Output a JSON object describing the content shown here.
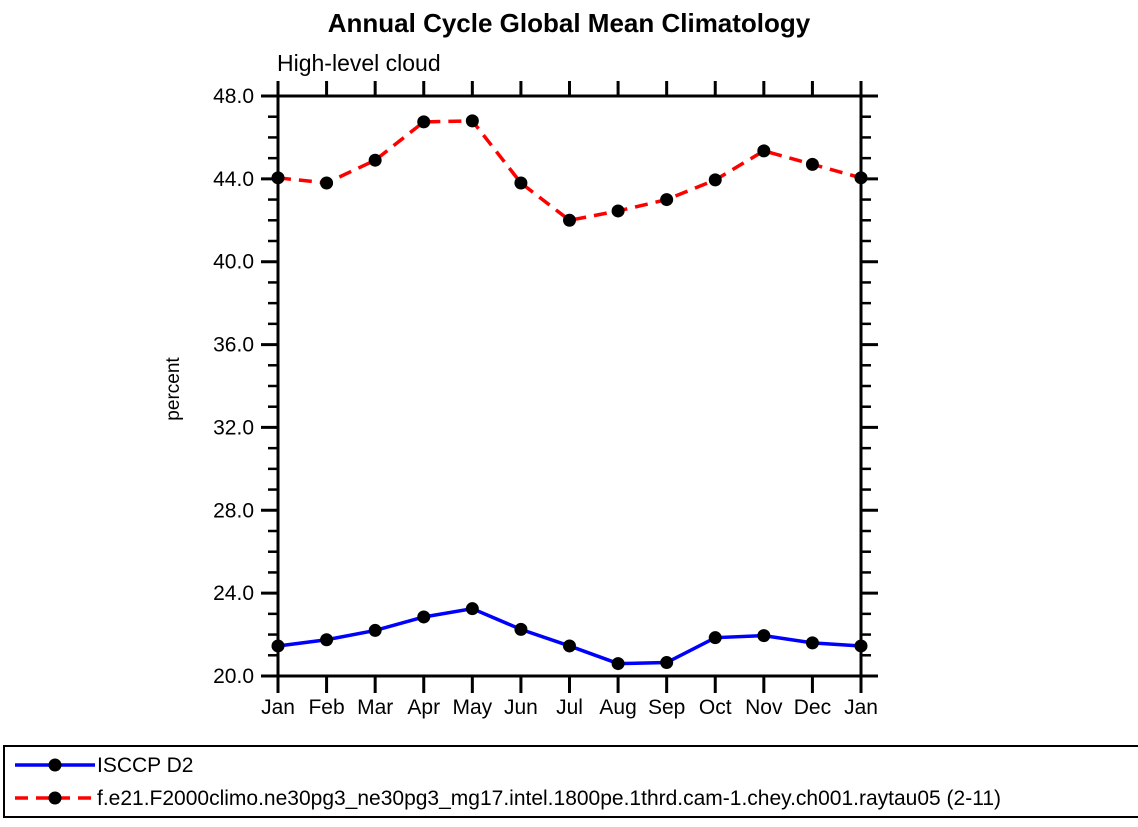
{
  "title": "Annual Cycle Global Mean Climatology",
  "subtitle": "High-level cloud",
  "ylabel": "percent",
  "colors": {
    "axis": "#000000",
    "marker": "#000000",
    "series1": "#0000ff",
    "series2": "#ff0000",
    "background": "#ffffff"
  },
  "legend": {
    "items": [
      {
        "label": "ISCCP D2",
        "color": "#0000ff",
        "style": "solid",
        "marker": "circle",
        "marker_color": "#000000"
      },
      {
        "label": "f.e21.F2000climo.ne30pg3_ne30pg3_mg17.intel.1800pe.1thrd.cam-1.chey.ch001.raytau05 (2-11)",
        "color": "#ff0000",
        "style": "dashed",
        "marker": "circle",
        "marker_color": "#000000"
      }
    ]
  },
  "chart_data": {
    "type": "line",
    "title": "Annual Cycle Global Mean Climatology",
    "subtitle": "High-level cloud",
    "xlabel": "",
    "ylabel": "percent",
    "categories": [
      "Jan",
      "Feb",
      "Mar",
      "Apr",
      "May",
      "Jun",
      "Jul",
      "Aug",
      "Sep",
      "Oct",
      "Nov",
      "Dec",
      "Jan"
    ],
    "series": [
      {
        "name": "ISCCP D2",
        "color": "#0000ff",
        "style": "solid",
        "marker": "circle",
        "marker_color": "#000000",
        "values": [
          21.45,
          21.75,
          22.2,
          22.85,
          23.25,
          22.25,
          21.45,
          20.6,
          20.65,
          21.85,
          21.95,
          21.6,
          21.45
        ]
      },
      {
        "name": "f.e21.F2000climo.ne30pg3_ne30pg3_mg17.intel.1800pe.1thrd.cam-1.chey.ch001.raytau05 (2-11)",
        "color": "#ff0000",
        "style": "dashed",
        "marker": "circle",
        "marker_color": "#000000",
        "values": [
          44.05,
          43.8,
          44.9,
          46.75,
          46.8,
          43.8,
          42.0,
          42.45,
          43.0,
          43.95,
          45.35,
          44.7,
          44.05
        ]
      }
    ],
    "ylim": [
      20,
      48
    ],
    "y_major_step": 4,
    "y_minor_step": 1,
    "yticks_major": [
      20,
      24,
      28,
      32,
      36,
      40,
      44,
      48
    ],
    "ytick_labels": [
      "20.0",
      "24.0",
      "28.0",
      "32.0",
      "36.0",
      "40.0",
      "44.0",
      "48.0"
    ],
    "grid": "off",
    "legend_position": "bottom"
  }
}
